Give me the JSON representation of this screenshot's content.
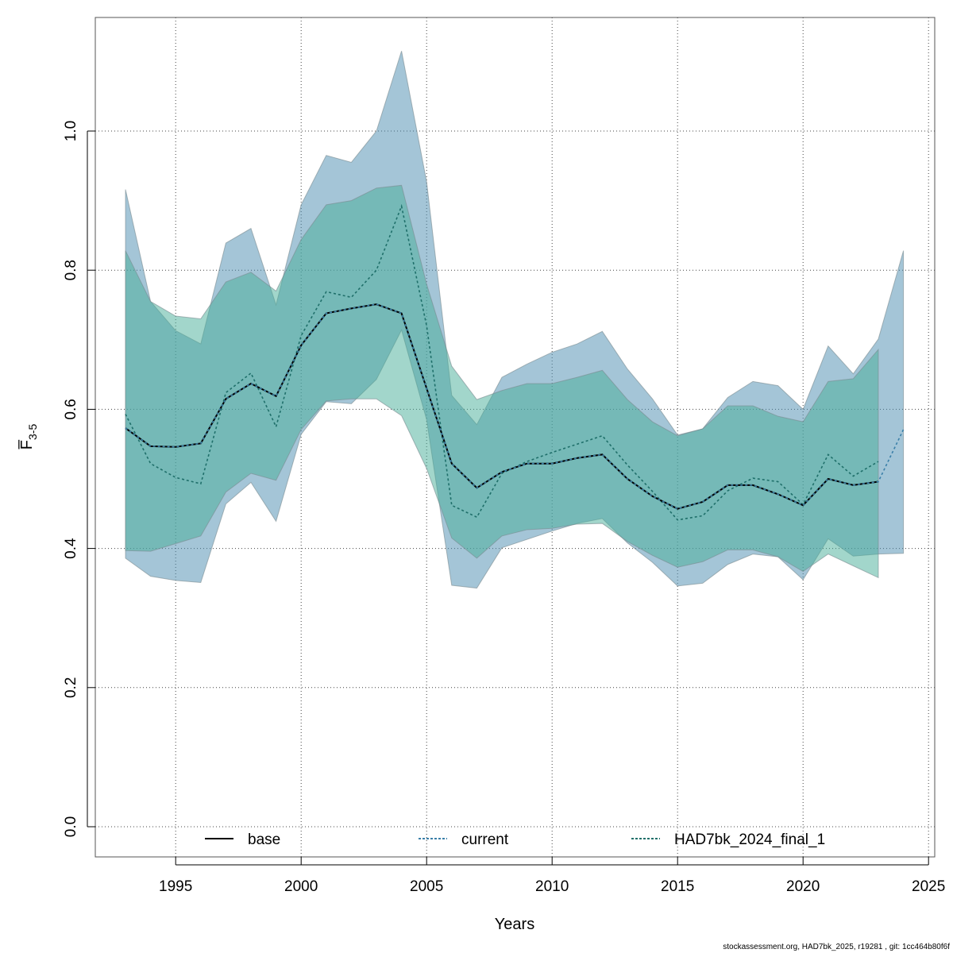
{
  "chart_data": {
    "type": "area",
    "xlabel": "Years",
    "ylabel": "F̅",
    "ylabel_sub": "3-5",
    "xlim": [
      1992,
      2025
    ],
    "ylim": [
      0,
      1.15
    ],
    "xticks": [
      1995,
      2000,
      2005,
      2010,
      2015,
      2020,
      2025
    ],
    "yticks": [
      "0.0",
      "0.2",
      "0.4",
      "0.6",
      "0.8",
      "1.0"
    ],
    "grid": true,
    "legend_position": "bottom",
    "series": [
      {
        "name": "base",
        "color": "#000000",
        "style": "solid",
        "x": [
          1993,
          1994,
          1995,
          1996,
          1997,
          1998,
          1999,
          2000,
          2001,
          2002,
          2003,
          2004,
          2005,
          2006,
          2007,
          2008,
          2009,
          2010,
          2011,
          2012,
          2013,
          2014,
          2015,
          2016,
          2017,
          2018,
          2019,
          2020,
          2021,
          2022,
          2023
        ],
        "y": [
          0.573,
          0.547,
          0.546,
          0.551,
          0.615,
          0.637,
          0.619,
          0.692,
          0.738,
          0.745,
          0.751,
          0.738,
          0.63,
          0.522,
          0.487,
          0.51,
          0.522,
          0.522,
          0.53,
          0.535,
          0.5,
          0.475,
          0.457,
          0.467,
          0.491,
          0.491,
          0.478,
          0.462,
          0.5,
          0.491,
          0.496
        ]
      },
      {
        "name": "current",
        "color": "#3a7fa8",
        "style": "dotted",
        "band_color": "#4a8bb0",
        "x": [
          1993,
          1994,
          1995,
          1996,
          1997,
          1998,
          1999,
          2000,
          2001,
          2002,
          2003,
          2004,
          2005,
          2006,
          2007,
          2008,
          2009,
          2010,
          2011,
          2012,
          2013,
          2014,
          2015,
          2016,
          2017,
          2018,
          2019,
          2020,
          2021,
          2022,
          2023,
          2024
        ],
        "y": [
          0.573,
          0.547,
          0.546,
          0.551,
          0.615,
          0.637,
          0.619,
          0.692,
          0.738,
          0.745,
          0.751,
          0.738,
          0.63,
          0.522,
          0.487,
          0.51,
          0.522,
          0.522,
          0.53,
          0.535,
          0.5,
          0.475,
          0.457,
          0.467,
          0.491,
          0.491,
          0.478,
          0.462,
          0.5,
          0.491,
          0.496,
          0.571
        ],
        "upper": [
          0.916,
          0.755,
          0.713,
          0.694,
          0.839,
          0.86,
          0.75,
          0.894,
          0.965,
          0.955,
          1.0,
          1.115,
          0.927,
          0.62,
          0.578,
          0.646,
          0.665,
          0.682,
          0.694,
          0.712,
          0.658,
          0.615,
          0.563,
          0.572,
          0.617,
          0.64,
          0.634,
          0.6,
          0.691,
          0.651,
          0.701,
          0.828
        ],
        "lower": [
          0.386,
          0.36,
          0.354,
          0.351,
          0.464,
          0.495,
          0.439,
          0.564,
          0.611,
          0.608,
          0.643,
          0.714,
          0.585,
          0.347,
          0.343,
          0.401,
          0.413,
          0.425,
          0.436,
          0.443,
          0.408,
          0.38,
          0.346,
          0.35,
          0.377,
          0.392,
          0.388,
          0.355,
          0.414,
          0.389,
          0.392,
          0.393
        ]
      },
      {
        "name": "HAD7bk_2024_final_1",
        "color": "#1f6f6a",
        "style": "dotted",
        "band_color": "#45ae98",
        "x": [
          1993,
          1994,
          1995,
          1996,
          1997,
          1998,
          1999,
          2000,
          2001,
          2002,
          2003,
          2004,
          2005,
          2006,
          2007,
          2008,
          2009,
          2010,
          2011,
          2012,
          2013,
          2014,
          2015,
          2016,
          2017,
          2018,
          2019,
          2020,
          2021,
          2022,
          2023
        ],
        "y": [
          0.593,
          0.522,
          0.502,
          0.493,
          0.624,
          0.652,
          0.575,
          0.706,
          0.769,
          0.761,
          0.8,
          0.892,
          0.72,
          0.462,
          0.445,
          0.508,
          0.525,
          0.538,
          0.55,
          0.562,
          0.52,
          0.482,
          0.441,
          0.447,
          0.483,
          0.501,
          0.496,
          0.463,
          0.535,
          0.504,
          0.525
        ],
        "upper": [
          0.828,
          0.755,
          0.734,
          0.73,
          0.783,
          0.797,
          0.77,
          0.844,
          0.894,
          0.9,
          0.918,
          0.922,
          0.78,
          0.662,
          0.614,
          0.627,
          0.637,
          0.637,
          0.646,
          0.656,
          0.614,
          0.582,
          0.562,
          0.572,
          0.605,
          0.605,
          0.59,
          0.582,
          0.64,
          0.644,
          0.686
        ],
        "lower": [
          0.397,
          0.396,
          0.407,
          0.418,
          0.481,
          0.508,
          0.498,
          0.571,
          0.612,
          0.615,
          0.615,
          0.591,
          0.515,
          0.415,
          0.386,
          0.418,
          0.427,
          0.429,
          0.435,
          0.436,
          0.41,
          0.39,
          0.373,
          0.381,
          0.398,
          0.398,
          0.388,
          0.367,
          0.392,
          0.375,
          0.358
        ]
      }
    ]
  },
  "footer": "stockassessment.org, HAD7bk_2025, r19281 , git: 1cc464b80f6f"
}
